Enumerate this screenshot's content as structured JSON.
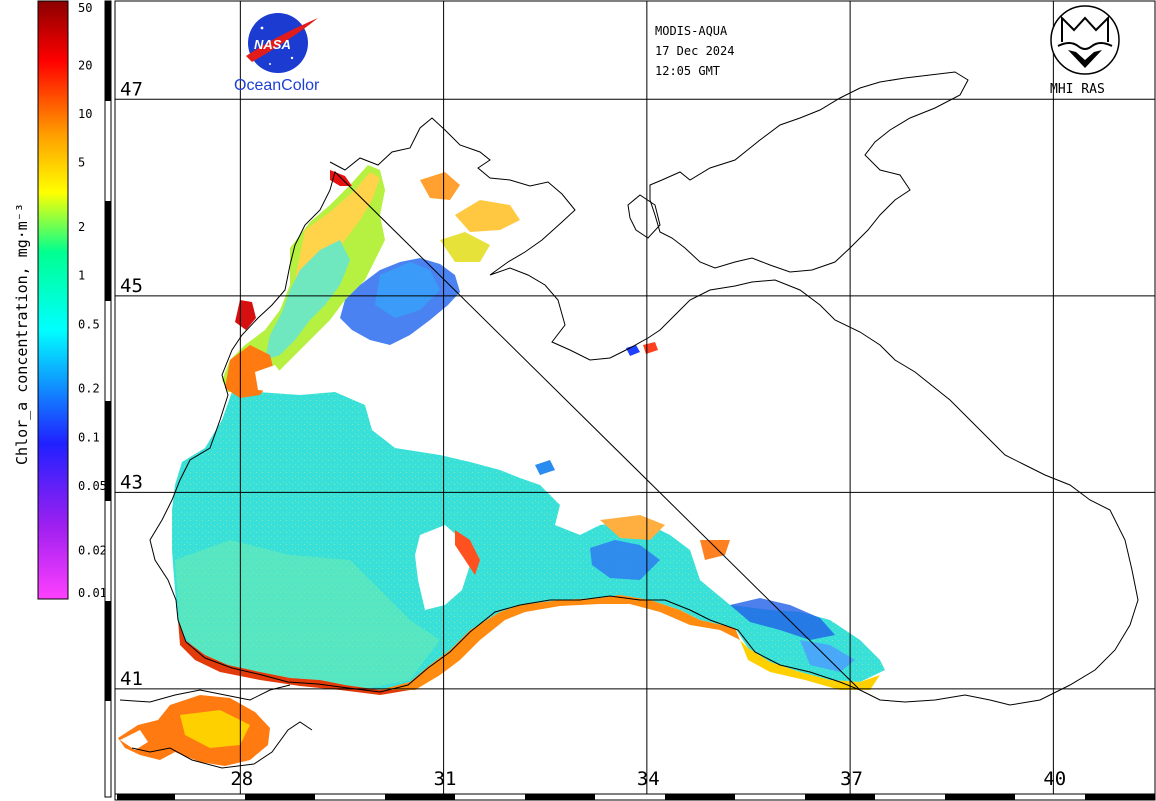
{
  "header": {
    "sensor": "MODIS-AQUA",
    "date": "17 Dec 2024",
    "time": "12:05 GMT"
  },
  "logos": {
    "nasa": "NASA",
    "oceancolor": "OceanColor",
    "institute": "MHI RAS"
  },
  "colorbar": {
    "title": "Chlor_a concentration, mg·m⁻³",
    "ticks": [
      {
        "label": "50",
        "value": 50
      },
      {
        "label": "20",
        "value": 20
      },
      {
        "label": "10",
        "value": 10
      },
      {
        "label": "5",
        "value": 5
      },
      {
        "label": "2",
        "value": 2
      },
      {
        "label": "1",
        "value": 1
      },
      {
        "label": "0.5",
        "value": 0.5
      },
      {
        "label": "0.2",
        "value": 0.2
      },
      {
        "label": "0.1",
        "value": 0.1
      },
      {
        "label": "0.05",
        "value": 0.05
      },
      {
        "label": "0.02",
        "value": 0.02
      },
      {
        "label": "0.01",
        "value": 0.01
      }
    ],
    "scale": "log",
    "range": [
      0.01,
      50
    ],
    "colors": [
      "#ff3cff",
      "#a020f0",
      "#2020ff",
      "#00ffff",
      "#00ff80",
      "#ffff00",
      "#ff8000",
      "#ff0000",
      "#800000"
    ]
  },
  "map": {
    "latitudes": [
      {
        "label": "47",
        "value": 47
      },
      {
        "label": "45",
        "value": 45
      },
      {
        "label": "43",
        "value": 43
      },
      {
        "label": "41",
        "value": 41
      }
    ],
    "longitudes": [
      {
        "label": "28",
        "value": 28
      },
      {
        "label": "31",
        "value": 31
      },
      {
        "label": "34",
        "value": 34
      },
      {
        "label": "37",
        "value": 37
      },
      {
        "label": "40",
        "value": 40
      }
    ],
    "lat_range": [
      39.9,
      48.0
    ],
    "lon_range": [
      26.15,
      41.5
    ],
    "grid": true
  }
}
